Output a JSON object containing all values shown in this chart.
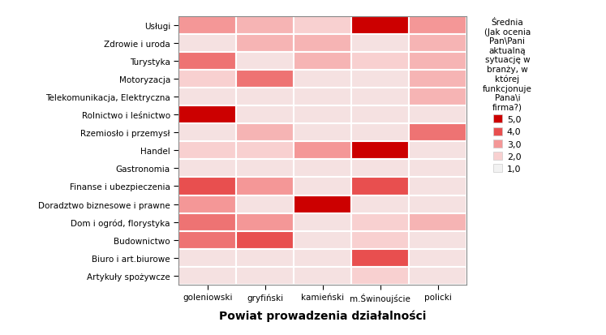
{
  "rows": [
    "Usługi",
    "Zdrowie i uroda",
    "Turystyka",
    "Motoryzacja",
    "Telekomunikacja, Elektryczna",
    "Rolnictwo i leśnictwo",
    "Rzemiosło i przemysł",
    "Handel",
    "Gastronomia",
    "Finanse i ubezpieczenia",
    "Doradztwo biznesowe i prawne",
    "Dom i ogród, florystyka",
    "Budownictwo",
    "Biuro i art.biurowe",
    "Artykuły spożywcze"
  ],
  "cols": [
    "goleniowski",
    "gryfiński",
    "kamieński",
    "m.Świnoujście",
    "policki"
  ],
  "values": [
    [
      3.0,
      2.5,
      2.0,
      5.0,
      3.0
    ],
    [
      1.5,
      2.5,
      2.5,
      1.5,
      2.5
    ],
    [
      3.5,
      1.5,
      2.5,
      2.0,
      2.5
    ],
    [
      2.0,
      3.5,
      1.5,
      1.5,
      2.5
    ],
    [
      1.5,
      1.5,
      1.5,
      1.5,
      2.5
    ],
    [
      5.0,
      1.5,
      1.5,
      1.5,
      1.5
    ],
    [
      1.5,
      2.5,
      1.5,
      1.5,
      3.5
    ],
    [
      2.0,
      2.0,
      3.0,
      5.0,
      1.5
    ],
    [
      1.5,
      1.5,
      1.5,
      1.5,
      1.5
    ],
    [
      4.0,
      3.0,
      1.5,
      4.0,
      1.5
    ],
    [
      3.0,
      1.5,
      5.0,
      1.5,
      1.5
    ],
    [
      3.5,
      3.0,
      1.5,
      2.0,
      2.5
    ],
    [
      3.5,
      4.0,
      1.5,
      2.0,
      1.5
    ],
    [
      1.5,
      1.5,
      1.5,
      4.0,
      1.5
    ],
    [
      1.5,
      1.5,
      1.5,
      2.0,
      1.5
    ]
  ],
  "xlabel": "Powiat prowadzenia działalności",
  "legend_title": "Średnia\n(Jak ocenia\nPan\\Pani\naktualną\nsytuację w\nbranży, w\nktórej\nfunkcjonuje\nPana\\i\nfirma?)",
  "legend_labels": [
    "5,0",
    "4,0",
    "3,0",
    "2,0",
    "1,0"
  ],
  "legend_values": [
    5.0,
    4.0,
    3.0,
    2.0,
    1.0
  ],
  "vmin": 1.0,
  "vmax": 5.0
}
